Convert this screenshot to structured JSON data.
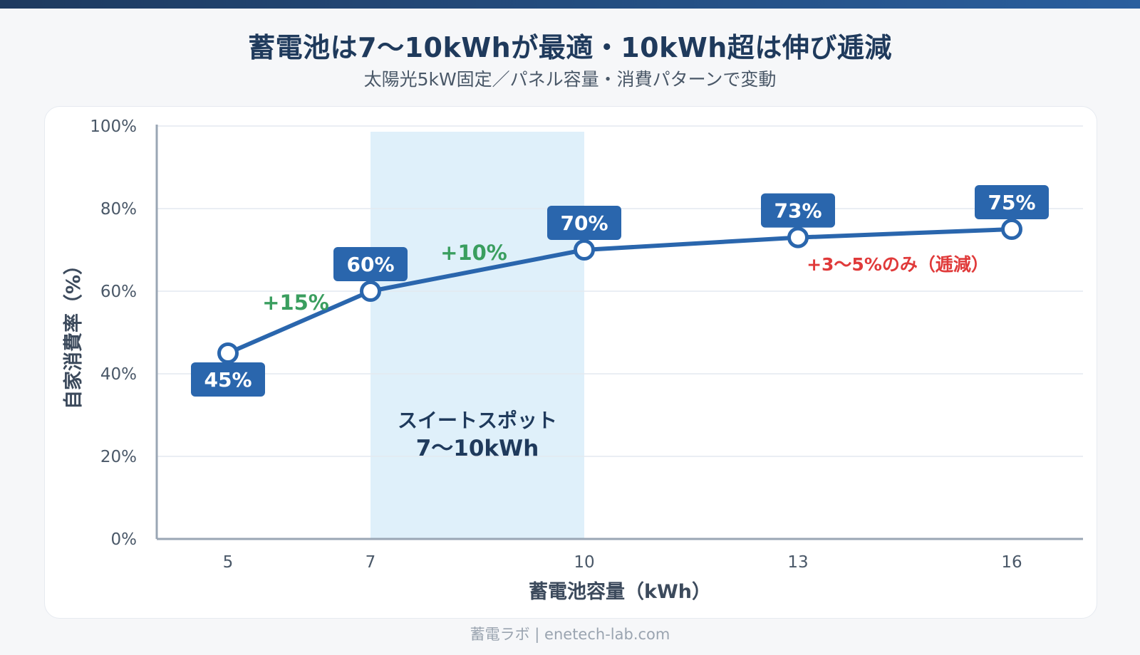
{
  "header": {
    "title": "蓄電池は7〜10kWhが最適・10kWh超は伸び逓減",
    "subtitle": "太陽光5kW固定／パネル容量・消費パターンで変動"
  },
  "footer": {
    "credit": "蓄電ラボ | enetech-lab.com"
  },
  "colors": {
    "line": "#2a66ad",
    "label_box": "#2a66ad",
    "sweet_spot_fill": "#dff0fa",
    "gain": "#3a9e5f",
    "diminish": "#e03a3a",
    "grid": "#e3e9f0",
    "axis": "#9aa6b4"
  },
  "chart_data": {
    "type": "line",
    "x": [
      5,
      7,
      10,
      13,
      16
    ],
    "values": [
      45,
      60,
      70,
      73,
      75
    ],
    "point_labels": [
      "45%",
      "60%",
      "70%",
      "73%",
      "75%"
    ],
    "x_tick_labels": [
      "5",
      "7",
      "10",
      "13",
      "16"
    ],
    "y_ticks": [
      0,
      20,
      40,
      60,
      80,
      100
    ],
    "y_tick_labels": [
      "0%",
      "20%",
      "40%",
      "60%",
      "80%",
      "100%"
    ],
    "ylim": [
      0,
      100
    ],
    "xlabel": "蓄電池容量（kWh）",
    "ylabel": "自家消費率（%）",
    "grid": true,
    "highlight_band": {
      "x_from": 7,
      "x_to": 10,
      "label_line1": "スイートスポット",
      "label_line2": "7〜10kWh"
    },
    "annotations": [
      {
        "text": "+15%",
        "kind": "gain",
        "between": [
          5,
          7
        ]
      },
      {
        "text": "+10%",
        "kind": "gain",
        "between": [
          7,
          10
        ]
      },
      {
        "text": "+3〜5%のみ（逓減）",
        "kind": "diminish",
        "between": [
          10,
          16
        ]
      }
    ]
  }
}
